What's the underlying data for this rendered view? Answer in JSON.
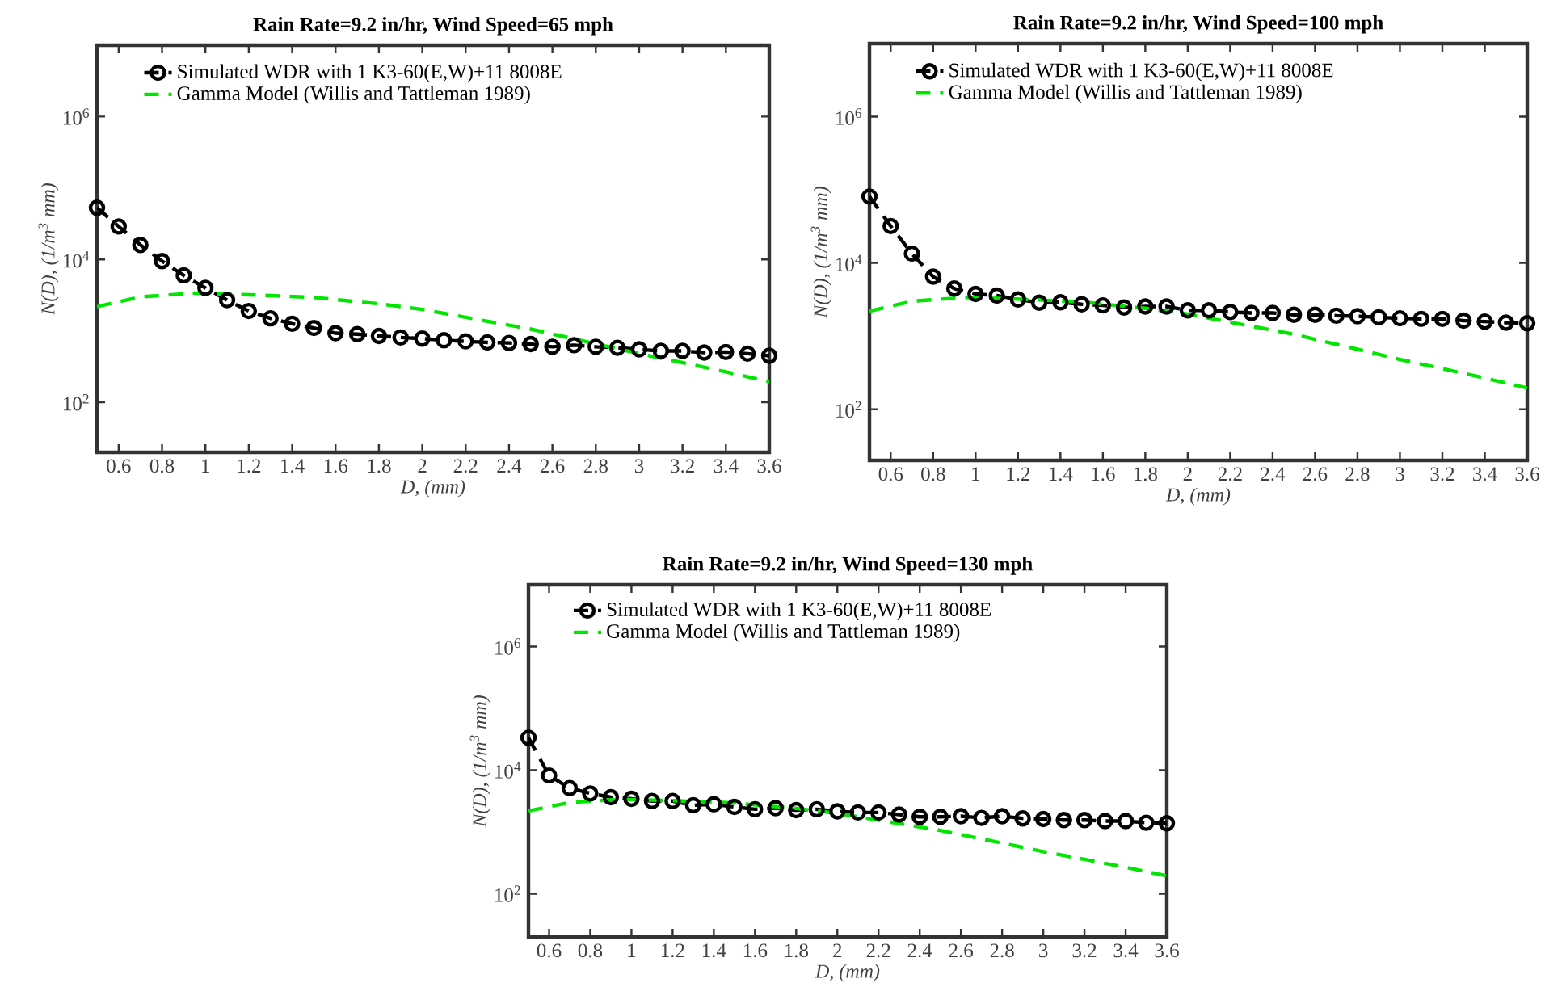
{
  "chart_data": [
    {
      "type": "line",
      "title": "Rain Rate=9.2 in/hr, Wind Speed=65 mph",
      "xlabel": "D, (mm)",
      "ylabel": "N(D), (1/m$^{3}$ mm)",
      "log": "y",
      "legend": "top left",
      "marker": "circle",
      "line_style": "dashed",
      "xlim": [
        0.5,
        3.6
      ],
      "ylim": [
        20,
        10000000
      ],
      "xticks": [
        0.6,
        0.8,
        1,
        1.2,
        1.4,
        1.6,
        1.8,
        2,
        2.2,
        2.4,
        2.6,
        2.8,
        3,
        3.2,
        3.4,
        3.6
      ],
      "yticks": [
        {
          "value": 100,
          "label": "10$^{2}$"
        },
        {
          "value": 10000,
          "label": "10$^{4}$"
        },
        {
          "value": 1000000,
          "label": "10$^{6}$"
        }
      ],
      "x": [
        0.5,
        0.6,
        0.7,
        0.8,
        0.9,
        1.0,
        1.1,
        1.2,
        1.3,
        1.4,
        1.5,
        1.6,
        1.7,
        1.8,
        1.9,
        2.0,
        2.1,
        2.2,
        2.3,
        2.4,
        2.5,
        2.6,
        2.7,
        2.8,
        2.9,
        3.0,
        3.1,
        3.2,
        3.3,
        3.4,
        3.5,
        3.6
      ],
      "series": [
        {
          "name": "Simulated WDR with 1 K3-60(E,W)+11 8008E",
          "color": "#000000",
          "values": [
            53000,
            29000,
            16000,
            9500,
            6000,
            4000,
            2700,
            1900,
            1500,
            1260,
            1100,
            930,
            900,
            850,
            810,
            780,
            740,
            715,
            690,
            678,
            655,
            600,
            632,
            600,
            580,
            552,
            524,
            524,
            498,
            506,
            481,
            449
          ]
        },
        {
          "name": "Gamma Model (Willis and Tattleman 1989)",
          "color": "#00e600",
          "marker": "none",
          "x": [
            0.5,
            0.7,
            0.95,
            1.2,
            1.5,
            1.8,
            2.0,
            2.2,
            2.5,
            2.8,
            3.0,
            3.2,
            3.4,
            3.6
          ],
          "values": [
            2190,
            3000,
            3380,
            3210,
            2940,
            2400,
            2000,
            1550,
            1060,
            660,
            480,
            360,
            267,
            195
          ]
        }
      ]
    },
    {
      "type": "line",
      "title": "Rain Rate=9.2 in/hr, Wind Speed=100 mph",
      "xlabel": "D, (mm)",
      "ylabel": "N(D), (1/m$^{3}$ mm)",
      "log": "y",
      "legend": "top left",
      "marker": "circle",
      "line_style": "dashed",
      "xlim": [
        0.5,
        3.6
      ],
      "ylim": [
        20,
        10000000
      ],
      "xticks": [
        0.6,
        0.8,
        1,
        1.2,
        1.4,
        1.6,
        1.8,
        2,
        2.2,
        2.4,
        2.6,
        2.8,
        3,
        3.2,
        3.4,
        3.6
      ],
      "yticks": [
        {
          "value": 100,
          "label": "10$^{2}$"
        },
        {
          "value": 10000,
          "label": "10$^{4}$"
        },
        {
          "value": 1000000,
          "label": "10$^{6}$"
        }
      ],
      "x": [
        0.5,
        0.6,
        0.7,
        0.8,
        0.9,
        1.0,
        1.1,
        1.2,
        1.3,
        1.4,
        1.5,
        1.6,
        1.7,
        1.8,
        1.9,
        2.0,
        2.1,
        2.2,
        2.3,
        2.4,
        2.5,
        2.6,
        2.7,
        2.8,
        2.9,
        3.0,
        3.1,
        3.2,
        3.3,
        3.4,
        3.5,
        3.6
      ],
      "series": [
        {
          "name": "Simulated WDR with 1 K3-60(E,W)+11 8008E",
          "color": "#000000",
          "values": [
            81000,
            32000,
            13400,
            6500,
            4470,
            3770,
            3580,
            3170,
            2870,
            2900,
            2720,
            2630,
            2460,
            2540,
            2540,
            2250,
            2250,
            2140,
            2070,
            2070,
            1960,
            1960,
            1900,
            1870,
            1810,
            1750,
            1720,
            1720,
            1630,
            1580,
            1530,
            1500
          ]
        },
        {
          "name": "Gamma Model (Willis and Tattleman 1989)",
          "color": "#00e600",
          "marker": "none",
          "x": [
            0.5,
            0.7,
            0.95,
            1.2,
            1.5,
            1.8,
            2.0,
            2.2,
            2.5,
            2.8,
            3.0,
            3.2,
            3.4,
            3.6
          ],
          "values": [
            2190,
            3000,
            3380,
            3210,
            2940,
            2400,
            2000,
            1550,
            1060,
            660,
            480,
            360,
            267,
            195
          ]
        }
      ]
    },
    {
      "type": "line",
      "title": "Rain Rate=9.2 in/hr, Wind Speed=130 mph",
      "xlabel": "D, (mm)",
      "ylabel": "N(D), (1/m$^{3}$ mm)",
      "log": "y",
      "legend": "top left",
      "marker": "circle",
      "line_style": "dashed",
      "xlim": [
        0.5,
        3.6
      ],
      "ylim": [
        20,
        10000000
      ],
      "xticks": [
        0.6,
        0.8,
        1,
        1.2,
        1.4,
        1.6,
        1.8,
        2,
        2.2,
        2.4,
        2.6,
        2.8,
        3,
        3.2,
        3.4,
        3.6
      ],
      "yticks": [
        {
          "value": 100,
          "label": "10$^{2}$"
        },
        {
          "value": 10000,
          "label": "10$^{4}$"
        },
        {
          "value": 1000000,
          "label": "10$^{6}$"
        }
      ],
      "x": [
        0.5,
        0.6,
        0.7,
        0.8,
        0.9,
        1.0,
        1.1,
        1.2,
        1.3,
        1.4,
        1.5,
        1.6,
        1.7,
        1.8,
        1.9,
        2.0,
        2.1,
        2.2,
        2.3,
        2.4,
        2.5,
        2.6,
        2.7,
        2.8,
        2.9,
        3.0,
        3.1,
        3.2,
        3.3,
        3.4,
        3.5,
        3.6
      ],
      "series": [
        {
          "name": "Simulated WDR with 1 K3-60(E,W)+11 8008E",
          "color": "#000000",
          "values": [
            33500,
            8200,
            5130,
            4200,
            3650,
            3440,
            3160,
            3160,
            2700,
            2800,
            2540,
            2330,
            2430,
            2250,
            2330,
            2160,
            2070,
            2070,
            1910,
            1760,
            1760,
            1800,
            1690,
            1800,
            1660,
            1620,
            1560,
            1560,
            1500,
            1500,
            1410,
            1380
          ]
        },
        {
          "name": "Gamma Model (Willis and Tattleman 1989)",
          "color": "#00e600",
          "marker": "none",
          "x": [
            0.5,
            0.7,
            0.95,
            1.2,
            1.5,
            1.8,
            2.0,
            2.2,
            2.5,
            2.8,
            3.0,
            3.2,
            3.4,
            3.6
          ],
          "values": [
            2190,
            3000,
            3380,
            3210,
            2940,
            2400,
            2000,
            1550,
            1060,
            660,
            480,
            360,
            267,
            195
          ]
        }
      ]
    }
  ]
}
